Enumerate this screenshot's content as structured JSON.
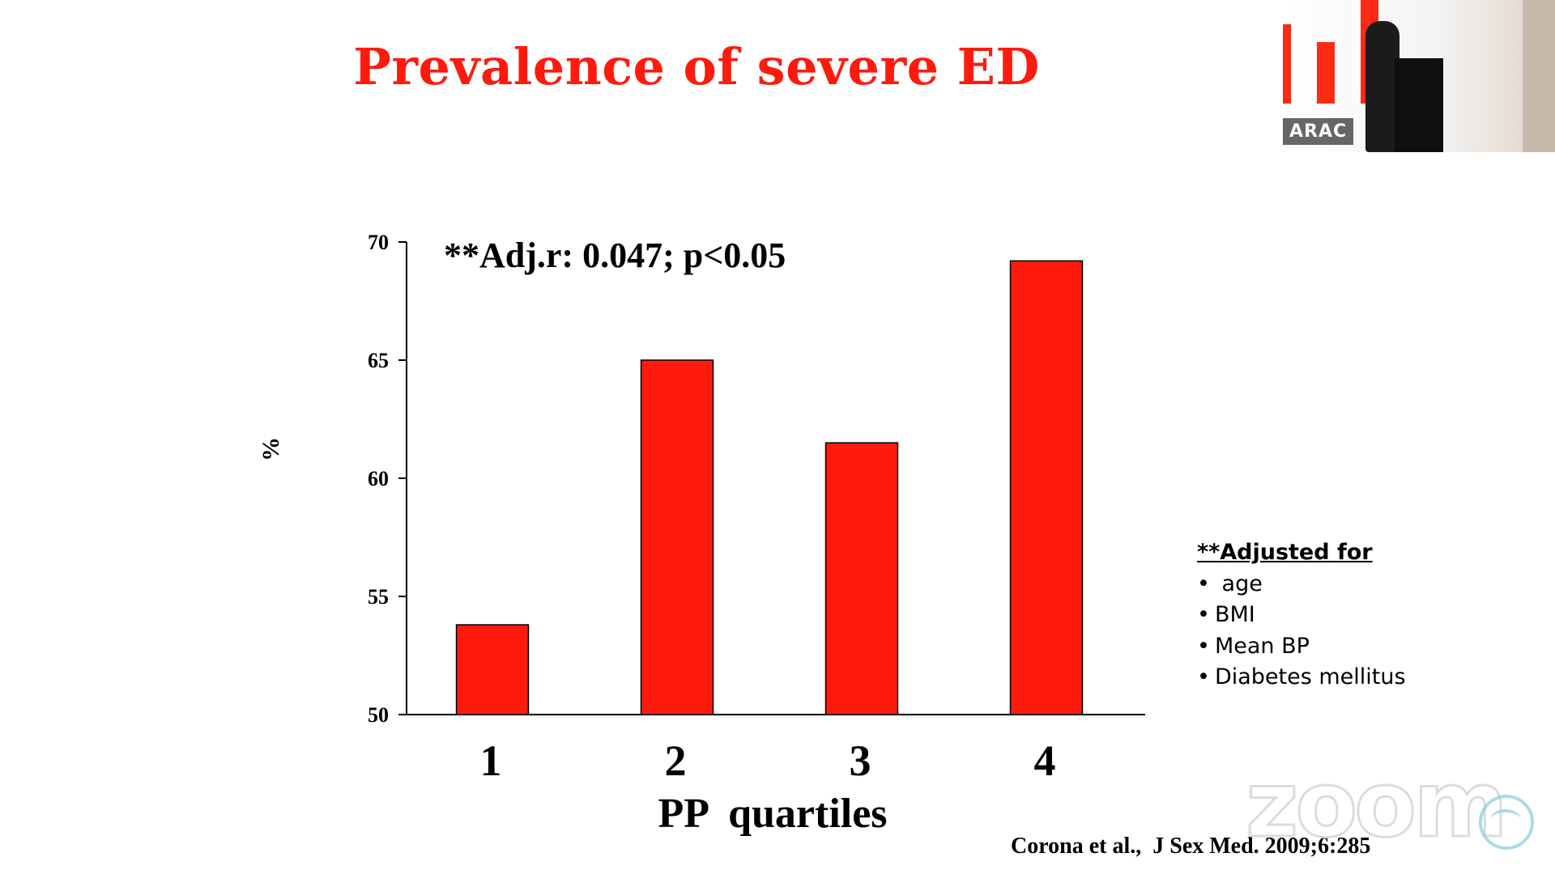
{
  "slide": {
    "title": "Prevalence of severe ED",
    "annotation": "**Adj.r: 0.047; p<0.05",
    "citation": "Corona et al.,  J Sex Med. 2009;6:285"
  },
  "adjusted": {
    "heading": "**Adjusted for",
    "items": [
      {
        "bullet": "•",
        "label": " age"
      },
      {
        "bullet": "•",
        "label": "BMI"
      },
      {
        "bullet": "•",
        "label": "Mean BP"
      },
      {
        "bullet": "•",
        "label": "Diabetes mellitus"
      }
    ]
  },
  "speaker_video": {
    "name": "ARAC"
  },
  "watermark": {
    "text": "zoom"
  },
  "colors": {
    "bar": "#ff1a0d",
    "title": "#ff1a0d",
    "axis": "#000000"
  },
  "chart_data": {
    "type": "bar",
    "title": "Prevalence of severe ED",
    "categories": [
      "1",
      "2",
      "3",
      "4"
    ],
    "values": [
      53.8,
      65.0,
      61.5,
      69.2
    ],
    "xlabel": "PP  quartiles",
    "ylabel": "%",
    "ylim": [
      50,
      70
    ],
    "yticks": [
      "50",
      "55",
      "60",
      "65",
      "70"
    ],
    "grid": false,
    "legend": "none"
  }
}
